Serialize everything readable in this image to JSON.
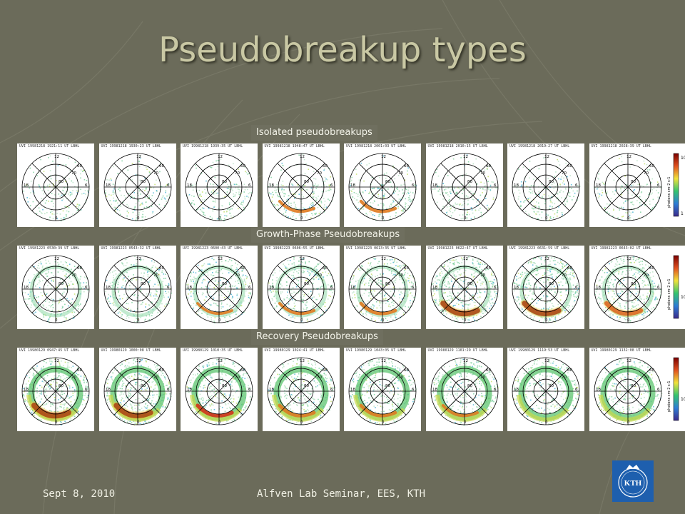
{
  "slide": {
    "title": "Pseudobreakup types",
    "footer_left": "Sept 8, 2010",
    "footer_center": "Alfven Lab Seminar, EES, KTH",
    "logo_text": "KTH"
  },
  "colors": {
    "background": "#6b6b5a",
    "title": "#c9c8a4",
    "label_bg": "#6f6f5f",
    "logo_blue": "#1e5fae"
  },
  "axis_labels": {
    "top": "12",
    "left": "18",
    "right": "6",
    "bottom": "0",
    "r60": "60",
    "r70": "70",
    "r80": "80"
  },
  "sections": [
    {
      "label": "Isolated pseudobreakups",
      "colorbar_label": "photons cm-2 s-1",
      "colorbar_ticks": [
        "10",
        "1"
      ],
      "times": [
        "UVI 19981218 1921:11 UT LBHL",
        "UVI 19981218 1930:23 UT LBHL",
        "UVI 19981218 1939:35 UT LBHL",
        "UVI 19981218 1948:47 UT LBHL",
        "UVI 19981218 2001:03 UT LBHL",
        "UVI 19981218 2010:15 UT LBHL",
        "UVI 19981218 2019:27 UT LBHL",
        "UVI 19981218 2028:39 UT LBHL"
      ],
      "intensity": [
        0,
        0,
        0.1,
        0.35,
        0.4,
        0.1,
        0.05,
        0
      ]
    },
    {
      "label": "Growth-Phase Pseudobreakups",
      "colorbar_label": "photons cm-2 s-1",
      "colorbar_ticks": [
        "10"
      ],
      "times": [
        "UVI 19981223 0530:39 UT LBHL",
        "UVI 19981223 0543:32 UT LBHL",
        "UVI 19981223 0600:43 UT LBHL",
        "UVI 19981223 0606:55 UT LBHL",
        "UVI 19981223 0613:35 UT LBHL",
        "UVI 19981223 0622:47 UT LBHL",
        "UVI 19981223 0631:59 UT LBHL",
        "UVI 19981223 0643:02 UT LBHL"
      ],
      "intensity": [
        0,
        0,
        0.3,
        0.35,
        0.45,
        0.95,
        0.9,
        0.7
      ]
    },
    {
      "label": "Recovery Pseudobreakups",
      "colorbar_label": "photons cm-2 s-1",
      "colorbar_ticks": [
        "10"
      ],
      "times": [
        "UVI 19980129 0947:45 UT LBHL",
        "UVI 19980129 1000:08 UT LBHL",
        "UVI 19980129 1010:35 UT LBHL",
        "UVI 19980129 1024:41 UT LBHL",
        "UVI 19980129 1043:05 UT LBHL",
        "UVI 19980129 1101:29 UT LBHL",
        "UVI 19980129 1119:53 UT LBHL",
        "UVI 19980129 1132:08 UT LBHL"
      ],
      "intensity": [
        1.0,
        0.9,
        0.55,
        0.5,
        0.45,
        0.35,
        0.25,
        0.15
      ]
    }
  ]
}
